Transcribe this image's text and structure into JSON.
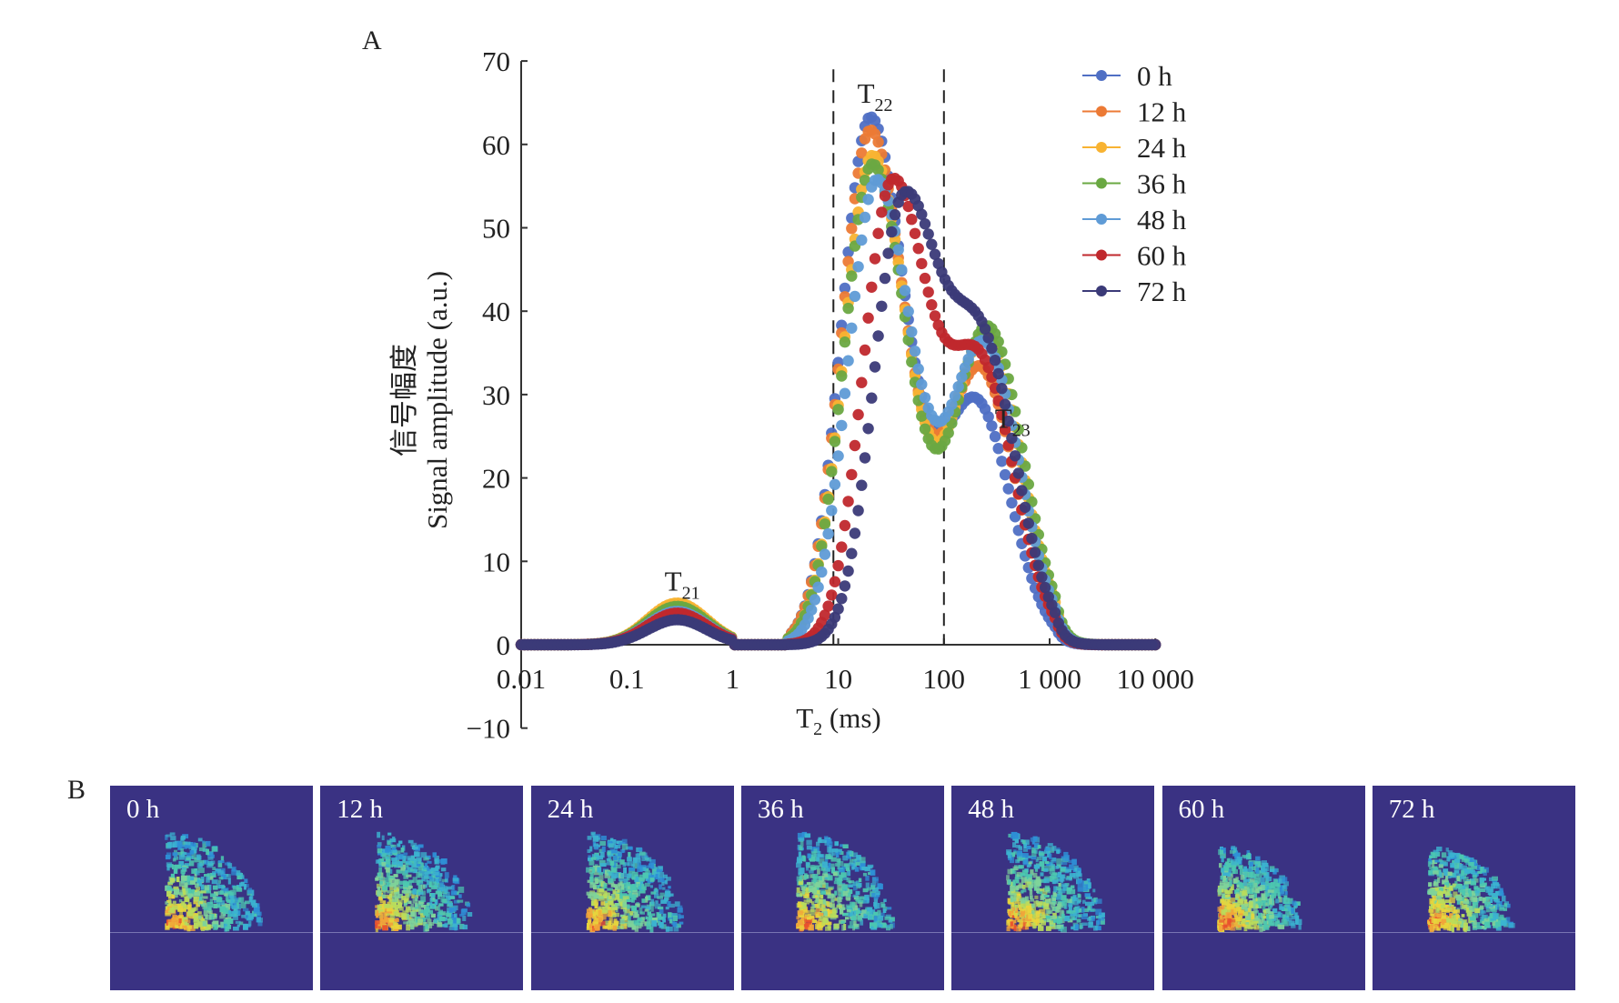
{
  "figure": {
    "panel_a_label": "A",
    "panel_b_label": "B"
  },
  "chart_data": {
    "type": "scatter",
    "title": "",
    "xlabel_main": "T",
    "xlabel_sub": "2",
    "xlabel_unit": " (ms)",
    "ylabel_line1": "信号幅度",
    "ylabel_line2": "Signal amplitude (a.u.)",
    "xscale": "log",
    "xlim": [
      0.01,
      10000
    ],
    "ylim": [
      -10,
      70
    ],
    "xticks": [
      0.01,
      0.1,
      1,
      10,
      100,
      1000,
      10000
    ],
    "xtick_labels": [
      "0.01",
      "0.1",
      "1",
      "10",
      "100",
      "1 000",
      "10 000"
    ],
    "yticks": [
      -10,
      0,
      10,
      20,
      30,
      40,
      50,
      60,
      70
    ],
    "ytick_labels": [
      "−10",
      "0",
      "10",
      "20",
      "30",
      "40",
      "50",
      "60",
      "70"
    ],
    "grid": false,
    "legend_position": "top-right",
    "reference_lines_x": [
      9,
      100
    ],
    "annotations": [
      {
        "main": "T",
        "sub": "21",
        "x": 0.3,
        "y": 6.5
      },
      {
        "main": "T",
        "sub": "22",
        "x": 20,
        "y": 65
      },
      {
        "main": "T",
        "sub": "23",
        "x": 400,
        "y": 26
      }
    ],
    "series": [
      {
        "name": "0 h",
        "color": "#4f6fc4",
        "peaks": [
          {
            "comp": "T21",
            "center_ms": 0.3,
            "amp": 4.3
          },
          {
            "comp": "T22",
            "center_ms": 20,
            "amp": 63.0
          },
          {
            "comp": "T23",
            "center_ms": 200,
            "amp": 29.0
          }
        ]
      },
      {
        "name": "12 h",
        "color": "#ec7a35",
        "peaks": [
          {
            "comp": "T21",
            "center_ms": 0.3,
            "amp": 4.8
          },
          {
            "comp": "T22",
            "center_ms": 20,
            "amp": 61.5
          },
          {
            "comp": "T23",
            "center_ms": 220,
            "amp": 33.0
          }
        ]
      },
      {
        "name": "24 h",
        "color": "#f8b332",
        "peaks": [
          {
            "comp": "T21",
            "center_ms": 0.3,
            "amp": 5.0
          },
          {
            "comp": "T22",
            "center_ms": 21,
            "amp": 58.5
          },
          {
            "comp": "T23",
            "center_ms": 250,
            "amp": 37.0
          }
        ]
      },
      {
        "name": "36 h",
        "color": "#6aa842",
        "peaks": [
          {
            "comp": "T21",
            "center_ms": 0.3,
            "amp": 4.6
          },
          {
            "comp": "T22",
            "center_ms": 21,
            "amp": 57.5
          },
          {
            "comp": "T23",
            "center_ms": 260,
            "amp": 38.0
          }
        ]
      },
      {
        "name": "48 h",
        "color": "#5f9bd6",
        "peaks": [
          {
            "comp": "T21",
            "center_ms": 0.3,
            "amp": 4.0
          },
          {
            "comp": "T22",
            "center_ms": 23,
            "amp": 55.5
          },
          {
            "comp": "T23",
            "center_ms": 240,
            "amp": 36.0
          }
        ]
      },
      {
        "name": "60 h",
        "color": "#c0282d",
        "peaks": [
          {
            "comp": "T21",
            "center_ms": 0.3,
            "amp": 3.8
          },
          {
            "comp": "T22",
            "center_ms": 32,
            "amp": 54.5
          },
          {
            "comp": "T23",
            "center_ms": 220,
            "amp": 33.0
          }
        ]
      },
      {
        "name": "72 h",
        "color": "#3b3a78",
        "peaks": [
          {
            "comp": "T21",
            "center_ms": 0.3,
            "amp": 3.0
          },
          {
            "comp": "T22",
            "center_ms": 40,
            "amp": 51.5
          },
          {
            "comp": "T23",
            "center_ms": 230,
            "amp": 35.0
          }
        ]
      }
    ]
  },
  "images": {
    "background_color": "#3a3283",
    "panels": [
      {
        "label": "0 h"
      },
      {
        "label": "12 h"
      },
      {
        "label": "24 h"
      },
      {
        "label": "36 h"
      },
      {
        "label": "48 h"
      },
      {
        "label": "60 h"
      },
      {
        "label": "72 h"
      }
    ]
  }
}
